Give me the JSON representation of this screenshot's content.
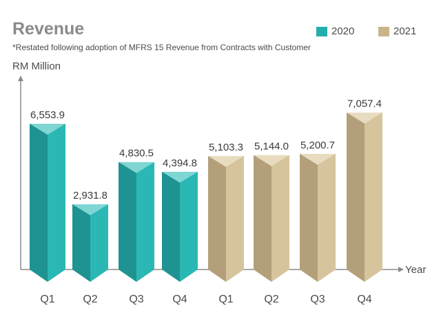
{
  "chart_data": {
    "type": "bar",
    "title": "Revenue",
    "subtitle": "*Restated following adoption of MFRS 15 Revenue from Contracts with Customer",
    "ylabel": "RM Million",
    "xlabel": "Year",
    "categories": [
      "Q1",
      "Q2",
      "Q3",
      "Q4",
      "Q1",
      "Q2",
      "Q3",
      "Q4"
    ],
    "value_labels": [
      "6,553.9",
      "2,931.8",
      "4,830.5",
      "4,394.8",
      "5,103.3",
      "5,144.0",
      "5,200.7",
      "7,057.4"
    ],
    "series": [
      {
        "name": "2020",
        "values": [
          6553.9,
          2931.8,
          4830.5,
          4394.8,
          null,
          null,
          null,
          null
        ]
      },
      {
        "name": "2021",
        "values": [
          null,
          null,
          null,
          null,
          5103.3,
          5144.0,
          5200.7,
          7057.4
        ]
      }
    ],
    "ylim": [
      0,
      8000
    ],
    "grid": false,
    "legend_position": "top-right"
  },
  "legend": [
    {
      "label": "2020",
      "color": "#22aeac"
    },
    {
      "label": "2021",
      "color": "#c9b48a"
    }
  ],
  "colors": {
    "2020": {
      "front_left": "#1f9391",
      "front_right": "#2bb8b4",
      "top": "#7fd6d3"
    },
    "2021": {
      "front_left": "#b3a07a",
      "front_right": "#d6c49c",
      "top": "#e8dcc0"
    },
    "axis": "#8a8a8a"
  }
}
